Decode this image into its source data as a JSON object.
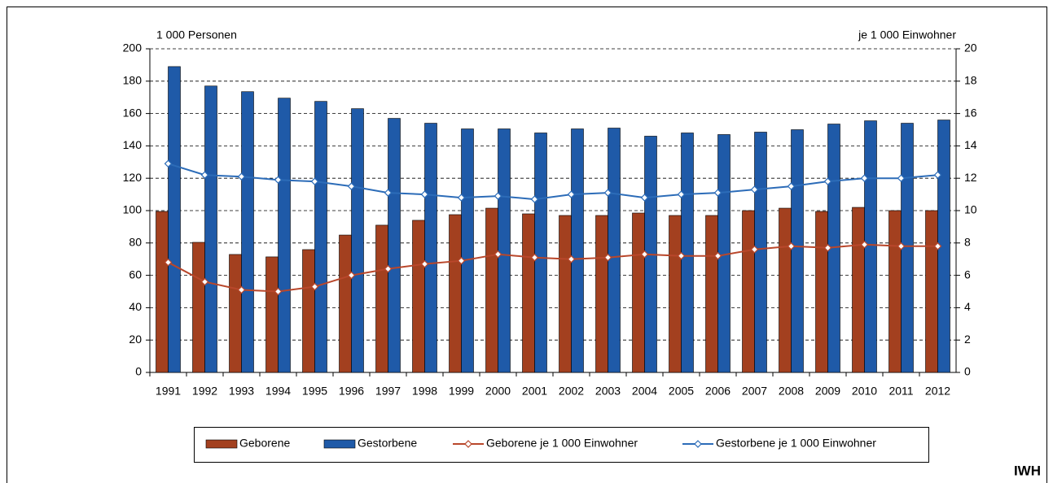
{
  "chart_data": {
    "type": "bar",
    "y_axis_label": "1 000 Personen",
    "y2_axis_label": "je 1 000 Einwohner",
    "credit": "IWH",
    "categories": [
      "1991",
      "1992",
      "1993",
      "1994",
      "1995",
      "1996",
      "1997",
      "1998",
      "1999",
      "2000",
      "2001",
      "2002",
      "2003",
      "2004",
      "2005",
      "2006",
      "2007",
      "2008",
      "2009",
      "2010",
      "2011",
      "2012"
    ],
    "series": [
      {
        "name": "Geborene",
        "type": "bar",
        "color": "#a3401f",
        "values": [
          99.5,
          80.4,
          72.9,
          71.4,
          75.9,
          84.9,
          91,
          94,
          97.5,
          101.5,
          98,
          97,
          97,
          98.5,
          97,
          97,
          100,
          101.5,
          99.5,
          102,
          100,
          100
        ]
      },
      {
        "name": "Gestorbene",
        "type": "bar",
        "color": "#1f5aa8",
        "values": [
          189,
          177,
          173.5,
          169.5,
          167.5,
          163,
          157,
          154,
          150.5,
          150.5,
          148,
          150.5,
          151,
          146,
          148,
          147,
          148.5,
          150,
          153.5,
          155.5,
          154,
          156
        ]
      },
      {
        "name": "Geborene je 1 000 Einwohner",
        "type": "line",
        "axis": "y2",
        "color": "#b9472b",
        "values": [
          6.8,
          5.6,
          5.1,
          5.0,
          5.3,
          6.0,
          6.4,
          6.7,
          6.9,
          7.3,
          7.1,
          7.0,
          7.1,
          7.3,
          7.2,
          7.2,
          7.6,
          7.8,
          7.7,
          7.9,
          7.8,
          7.8
        ]
      },
      {
        "name": "Gestorbene je 1 000 Einwohner",
        "type": "line",
        "axis": "y2",
        "color": "#2c6cb8",
        "values": [
          12.9,
          12.2,
          12.1,
          11.9,
          11.8,
          11.5,
          11.1,
          11.0,
          10.8,
          10.9,
          10.7,
          11.0,
          11.1,
          10.8,
          11.0,
          11.1,
          11.3,
          11.5,
          11.8,
          12.0,
          12.0,
          12.2
        ]
      }
    ],
    "ylim": [
      0,
      200
    ],
    "yticks": [
      0,
      20,
      40,
      60,
      80,
      100,
      120,
      140,
      160,
      180,
      200
    ],
    "y2lim": [
      0,
      20
    ],
    "y2ticks": [
      0,
      2,
      4,
      6,
      8,
      10,
      12,
      14,
      16,
      18,
      20
    ],
    "grid": true,
    "legend": "bottom"
  }
}
